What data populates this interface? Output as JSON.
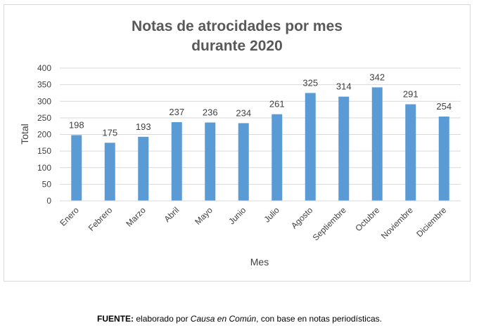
{
  "chart_data": {
    "type": "bar",
    "title_lines": [
      "Notas de atrocidades por mes",
      "durante 2020"
    ],
    "categories": [
      "Enero",
      "Febrero",
      "Marzo",
      "Abril",
      "Mayo",
      "Junio",
      "Julio",
      "Agosto",
      "Septiembre",
      "Octubre",
      "Noviembre",
      "Diciembre"
    ],
    "values": [
      198,
      175,
      193,
      237,
      236,
      234,
      261,
      325,
      314,
      342,
      291,
      254
    ],
    "xlabel": "Mes",
    "ylabel": "Total",
    "ylim": [
      0,
      400
    ],
    "yticks": [
      0,
      50,
      100,
      150,
      200,
      250,
      300,
      350,
      400
    ],
    "grid": true,
    "bar_color": "#5b9bd5",
    "grid_color": "#d9d9d9"
  },
  "source": {
    "label": "FUENTE:",
    "pre": " elaborado por ",
    "org": "Causa en Común",
    "post": ", con base en notas periodísticas."
  }
}
